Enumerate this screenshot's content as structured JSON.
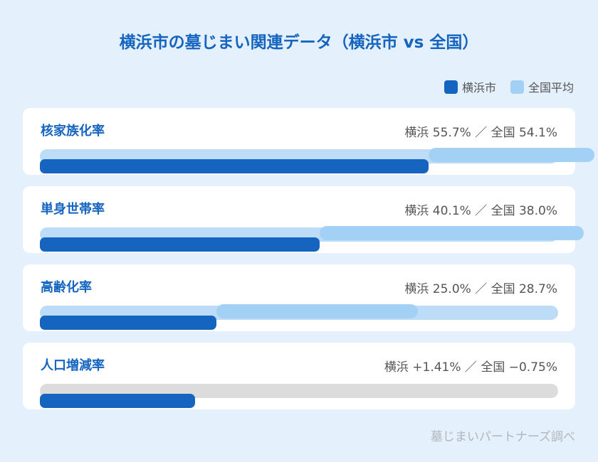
{
  "title": "横浜市の墓じまい関連データ（横浜市 vs 全国）",
  "legend": {
    "yokohama": "横浜市",
    "national": "全国平均",
    "yokohama_color": "#1565c0",
    "national_color": "#a3d1f6"
  },
  "source": "墓じまいパートナーズ調べ",
  "chart_data": {
    "type": "bar",
    "title": "横浜市の墓じまい関連データ（横浜市 vs 全国）",
    "series_names": [
      "横浜市",
      "全国平均"
    ],
    "metrics": [
      {
        "label": "核家族化率",
        "display": "横浜 55.7% ／ 全国 54.1%",
        "yokohama": 55.7,
        "national": 54.1,
        "yokohama_fill": 0.75,
        "national_fill_start": 0.75,
        "national_fill_end": 1.07,
        "track_color": "#bcdcf8"
      },
      {
        "label": "単身世帯率",
        "display": "横浜 40.1% ／ 全国 38.0%",
        "yokohama": 40.1,
        "national": 38.0,
        "yokohama_fill": 0.54,
        "national_fill_start": 0.54,
        "national_fill_end": 1.05,
        "track_color": "#bcdcf8"
      },
      {
        "label": "高齢化率",
        "display": "横浜 25.0% ／ 全国 28.7%",
        "yokohama": 25.0,
        "national": 28.7,
        "yokohama_fill": 0.34,
        "national_fill_start": 0.34,
        "national_fill_end": 0.73,
        "track_color": "#bcdcf8"
      },
      {
        "label": "人口増減率",
        "display": "横浜 +1.41% ／ 全国 −0.75%",
        "yokohama": 1.41,
        "national": -0.75,
        "yokohama_fill": 0.3,
        "national_fill_start": 0,
        "national_fill_end": 0,
        "track_color": "#dcdcdc"
      }
    ]
  }
}
